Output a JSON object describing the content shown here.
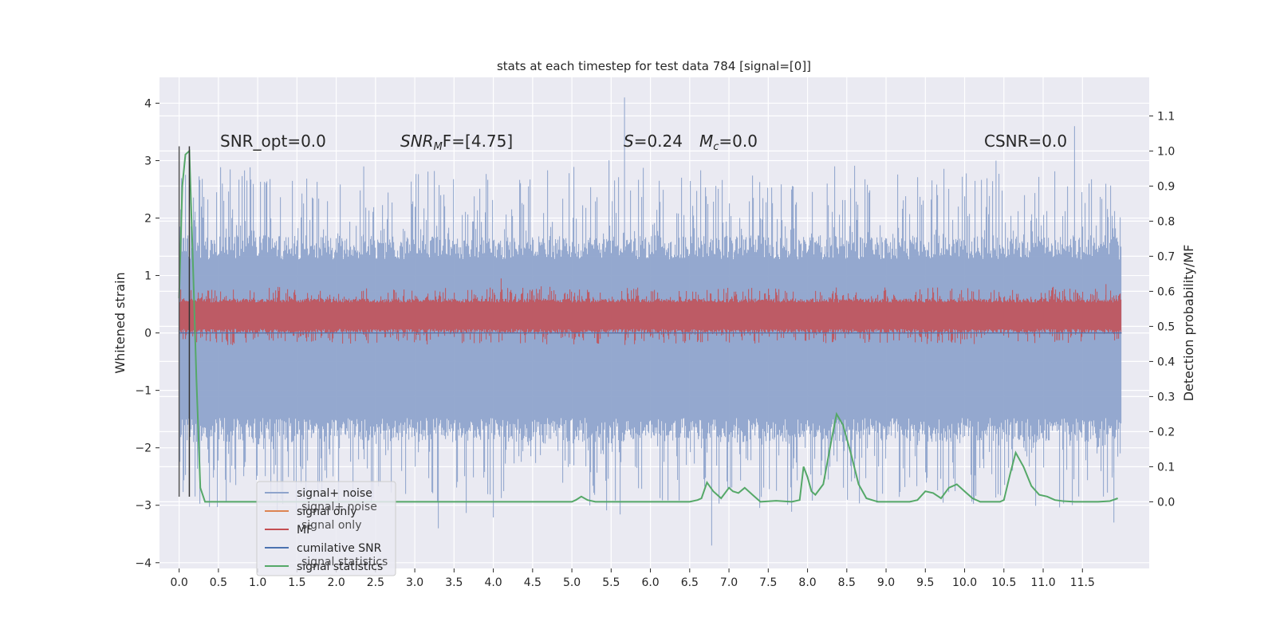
{
  "chart_data": {
    "type": "line",
    "title": "stats at each timestep for test data 784 [signal=[0]]",
    "xlabel": "",
    "ylabel": "Whitened strain",
    "y2label": "Detection probability/MF",
    "xlim": [
      -0.25,
      12.35
    ],
    "ylim": [
      -4.1,
      4.45
    ],
    "y2lim": [
      -0.19,
      1.21
    ],
    "x_ticks": [
      "0.0",
      "0.5",
      "1.0",
      "1.5",
      "2.0",
      "2.5",
      "3.0",
      "3.5",
      "4.0",
      "4.5",
      "5.0",
      "5.5",
      "6.0",
      "6.5",
      "7.0",
      "7.5",
      "8.0",
      "8.5",
      "9.0",
      "9.5",
      "10.0",
      "10.5",
      "11.0",
      "11.5"
    ],
    "y_ticks": [
      "4",
      "3",
      "2",
      "1",
      "0",
      "−1",
      "−2",
      "−3",
      "−4"
    ],
    "y2_ticks": [
      "1.1",
      "1.0",
      "0.9",
      "0.8",
      "0.7",
      "0.6",
      "0.5",
      "0.4",
      "0.3",
      "0.2",
      "0.1",
      "0.0"
    ],
    "grid": true,
    "legend_position": "lower-left",
    "annotations": {
      "snr_opt": "SNR_opt=0.0",
      "snr_mf_base": "SNR",
      "snr_mf_sub": "M",
      "snr_mf_rest": "F=[4.75]",
      "s_label": "S",
      "s_rest": "=0.24",
      "mc_base": "M",
      "mc_sub": "c",
      "mc_rest": "=0.0",
      "csnr": "CSNR=0.0"
    },
    "ghost_legend": {
      "noise": "signal+ noise",
      "signal": "signal only",
      "stats": "signal statistics"
    },
    "series": [
      {
        "name": "signal+ noise",
        "axis": "left",
        "color": "#8fa4cc",
        "render": "noise-band",
        "x_range": [
          0.0,
          12.0
        ],
        "envelope_upper": 1.4,
        "envelope_lower": -1.6,
        "spikes": [
          [
            0.02,
            1.9
          ],
          [
            0.55,
            2.6
          ],
          [
            1.3,
            -2.9
          ],
          [
            2.35,
            2.9
          ],
          [
            3.3,
            -3.4
          ],
          [
            5.67,
            4.1
          ],
          [
            6.78,
            -3.7
          ],
          [
            8.25,
            2.6
          ],
          [
            10.4,
            3.0
          ],
          [
            11.4,
            3.6
          ],
          [
            11.9,
            -3.3
          ]
        ]
      },
      {
        "name": "signal only",
        "axis": "left",
        "color": "#dd8452",
        "x": [
          0.0,
          12.0
        ],
        "y": [
          0.0,
          0.0
        ]
      },
      {
        "name": "MF",
        "axis": "left",
        "color": "#c44e52",
        "render": "noise-band",
        "x_range": [
          0.0,
          12.0
        ],
        "envelope_upper": 0.55,
        "envelope_lower": 0.05,
        "spikes": [
          [
            4.1,
            0.95
          ],
          [
            11.8,
            0.85
          ]
        ]
      },
      {
        "name": "cumilative SNR",
        "axis": "left",
        "color": "#4c72b0",
        "x": [
          0.0,
          12.0
        ],
        "y": [
          0.0,
          0.0
        ]
      },
      {
        "name": "signal statistics",
        "axis": "right",
        "color": "#55a868",
        "x": [
          0.0,
          0.04,
          0.08,
          0.13,
          0.17,
          0.22,
          0.27,
          0.33,
          1.0,
          2.0,
          3.0,
          4.0,
          5.0,
          5.05,
          5.12,
          5.2,
          5.3,
          5.5,
          6.0,
          6.5,
          6.6,
          6.65,
          6.72,
          6.8,
          6.9,
          7.0,
          7.05,
          7.12,
          7.2,
          7.3,
          7.4,
          7.6,
          7.8,
          7.9,
          7.95,
          8.0,
          8.05,
          8.1,
          8.2,
          8.3,
          8.37,
          8.45,
          8.55,
          8.65,
          8.75,
          8.85,
          8.9,
          9.0,
          9.3,
          9.4,
          9.5,
          9.6,
          9.7,
          9.8,
          9.9,
          10.0,
          10.1,
          10.2,
          10.3,
          10.45,
          10.5,
          10.58,
          10.65,
          10.75,
          10.85,
          10.95,
          11.05,
          11.15,
          11.25,
          11.4,
          11.7,
          11.85,
          11.95
        ],
        "y": [
          0.58,
          0.9,
          0.99,
          1.0,
          0.72,
          0.35,
          0.04,
          0.0,
          0.0,
          0.0,
          0.0,
          0.0,
          0.0,
          0.005,
          0.015,
          0.005,
          0.0,
          0.0,
          0.0,
          0.0,
          0.005,
          0.01,
          0.055,
          0.03,
          0.01,
          0.04,
          0.03,
          0.025,
          0.04,
          0.02,
          0.0,
          0.003,
          0.0,
          0.005,
          0.1,
          0.07,
          0.03,
          0.02,
          0.05,
          0.17,
          0.25,
          0.22,
          0.14,
          0.05,
          0.01,
          0.003,
          0.0,
          0.0,
          0.0,
          0.005,
          0.03,
          0.025,
          0.01,
          0.04,
          0.05,
          0.03,
          0.01,
          0.0,
          0.0,
          0.0,
          0.005,
          0.08,
          0.14,
          0.1,
          0.045,
          0.02,
          0.015,
          0.005,
          0.002,
          0.0,
          0.0,
          0.002,
          0.01
        ]
      }
    ],
    "vertical_markers": [
      {
        "x": 0.0,
        "y": [
          -2.85,
          3.25
        ],
        "color": "#555555"
      },
      {
        "x": 0.13,
        "y": [
          -2.85,
          3.25
        ],
        "color": "#333333"
      }
    ]
  }
}
